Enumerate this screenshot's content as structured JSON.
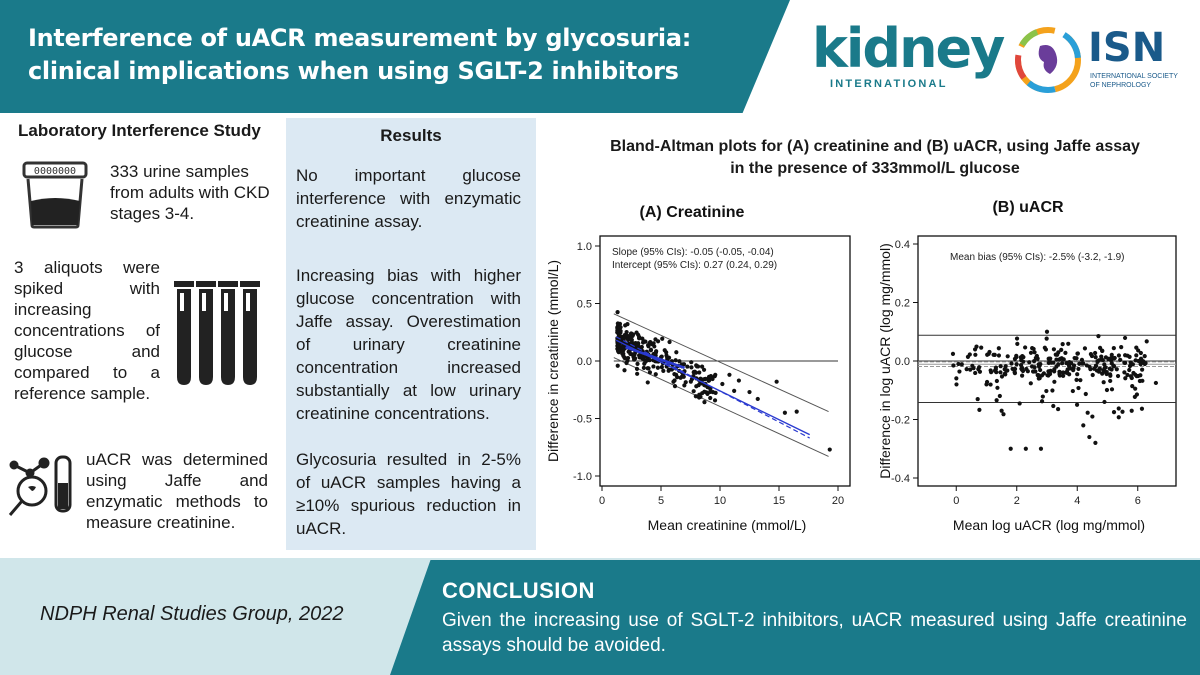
{
  "header": {
    "title_line1": "Interference of uACR measurement by glycosuria:",
    "title_line2": "clinical implications when using SGLT-2 inhibitors"
  },
  "logos": {
    "kidney_word": "kidney",
    "kidney_sub": "INTERNATIONAL",
    "isn_word": "ISN",
    "isn_sub": "INTERNATIONAL SOCIETY OF NEPHROLOGY"
  },
  "left_panel": {
    "title": "Laboratory Interference Study",
    "samples_text": "333 urine samples from adults with CKD stages 3-4.",
    "aliquots_text": "3 aliquots were spiked with increasing concentrations of glucose and compared to a reference sample.",
    "uacr_text": "uACR was determined using Jaffe and enzymatic methods to measure creatinine.",
    "sample_cup_label": "0000000"
  },
  "results": {
    "title": "Results",
    "para1": "No important glucose interference with enzymatic creatinine assay.",
    "para2": "Increasing bias with higher glucose concentration with Jaffe assay. Overestimation of urinary creatinine concentration increased substantially at low urinary creatinine concentrations.",
    "para3": "Glycosuria resulted in 2-5% of uACR samples having a ≥10% spurious reduction in uACR."
  },
  "chart_title": {
    "line1": "Bland-Altman plots for (A) creatinine and (B) uACR, using Jaffe assay",
    "line2": "in the presence of 333mmol/L glucose"
  },
  "chart_data": [
    {
      "type": "scatter",
      "title": "(A) Creatinine",
      "xlabel": "Mean creatinine (mmol/L)",
      "ylabel": "Difference in creatinine (mmol/L)",
      "xlim": [
        0,
        20
      ],
      "ylim": [
        -1.0,
        1.0
      ],
      "xticks": [
        "0",
        "5",
        "10",
        "15",
        "20"
      ],
      "yticks": [
        "1.0",
        "0.5",
        "0.0",
        "-0.5",
        "-1.0"
      ],
      "annotation1": "Slope (95% CIs): -0.05 (-0.05, -0.04)",
      "annotation2": "Intercept (95% CIs): 0.27 (0.24, 0.29)",
      "slope": -0.05,
      "intercept": 0.27,
      "colors": {
        "fit": "#2a3ad0",
        "points": "#111111",
        "limits": "#555555"
      }
    },
    {
      "type": "scatter",
      "title": "(B) uACR",
      "xlabel": "Mean log uACR (log mg/mmol)",
      "ylabel": "Difference in log uACR (log mg/mmol)",
      "xlim": [
        -1,
        7
      ],
      "ylim": [
        -0.4,
        0.4
      ],
      "xticks": [
        "0",
        "2",
        "4",
        "6"
      ],
      "yticks": [
        "0.4",
        "0.2",
        "0.0",
        "-0.2",
        "-0.4"
      ],
      "annotation1": "Mean bias (95% CIs): -2.5% (-3.2, -1.9)",
      "mean_bias": -0.011,
      "upper_limit": 0.088,
      "lower_limit": -0.142,
      "colors": {
        "points": "#111111",
        "limits": "#333333"
      }
    }
  ],
  "footer": {
    "group": "NDPH Renal Studies Group, 2022",
    "conclusion_title": "CONCLUSION",
    "conclusion_text": "Given the increasing use of SGLT-2 inhibitors, uACR measured using Jaffe creatinine assays should be avoided."
  },
  "colors": {
    "teal": "#1a7a8a",
    "results_bg": "#dce9f3",
    "bottom_band": "#d0e6ea"
  }
}
